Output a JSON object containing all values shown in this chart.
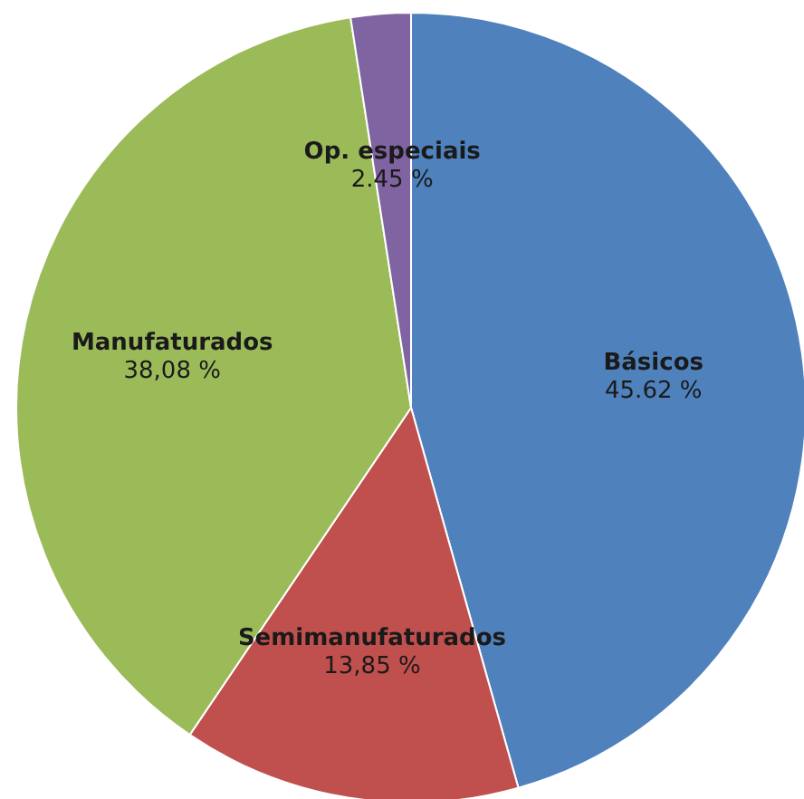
{
  "chart_data": {
    "type": "pie",
    "categories": [
      "Básicos",
      "Semimanufaturados",
      "Manufaturados",
      "Op. especiais"
    ],
    "values": [
      45.62,
      13.85,
      38.08,
      2.45
    ],
    "value_labels": [
      "45.62 %",
      "13,85 %",
      "38,08 %",
      "2.45 %"
    ],
    "colors": [
      "#4f81bd",
      "#c0504d",
      "#9bbb59",
      "#8064a2"
    ],
    "legend": false
  }
}
